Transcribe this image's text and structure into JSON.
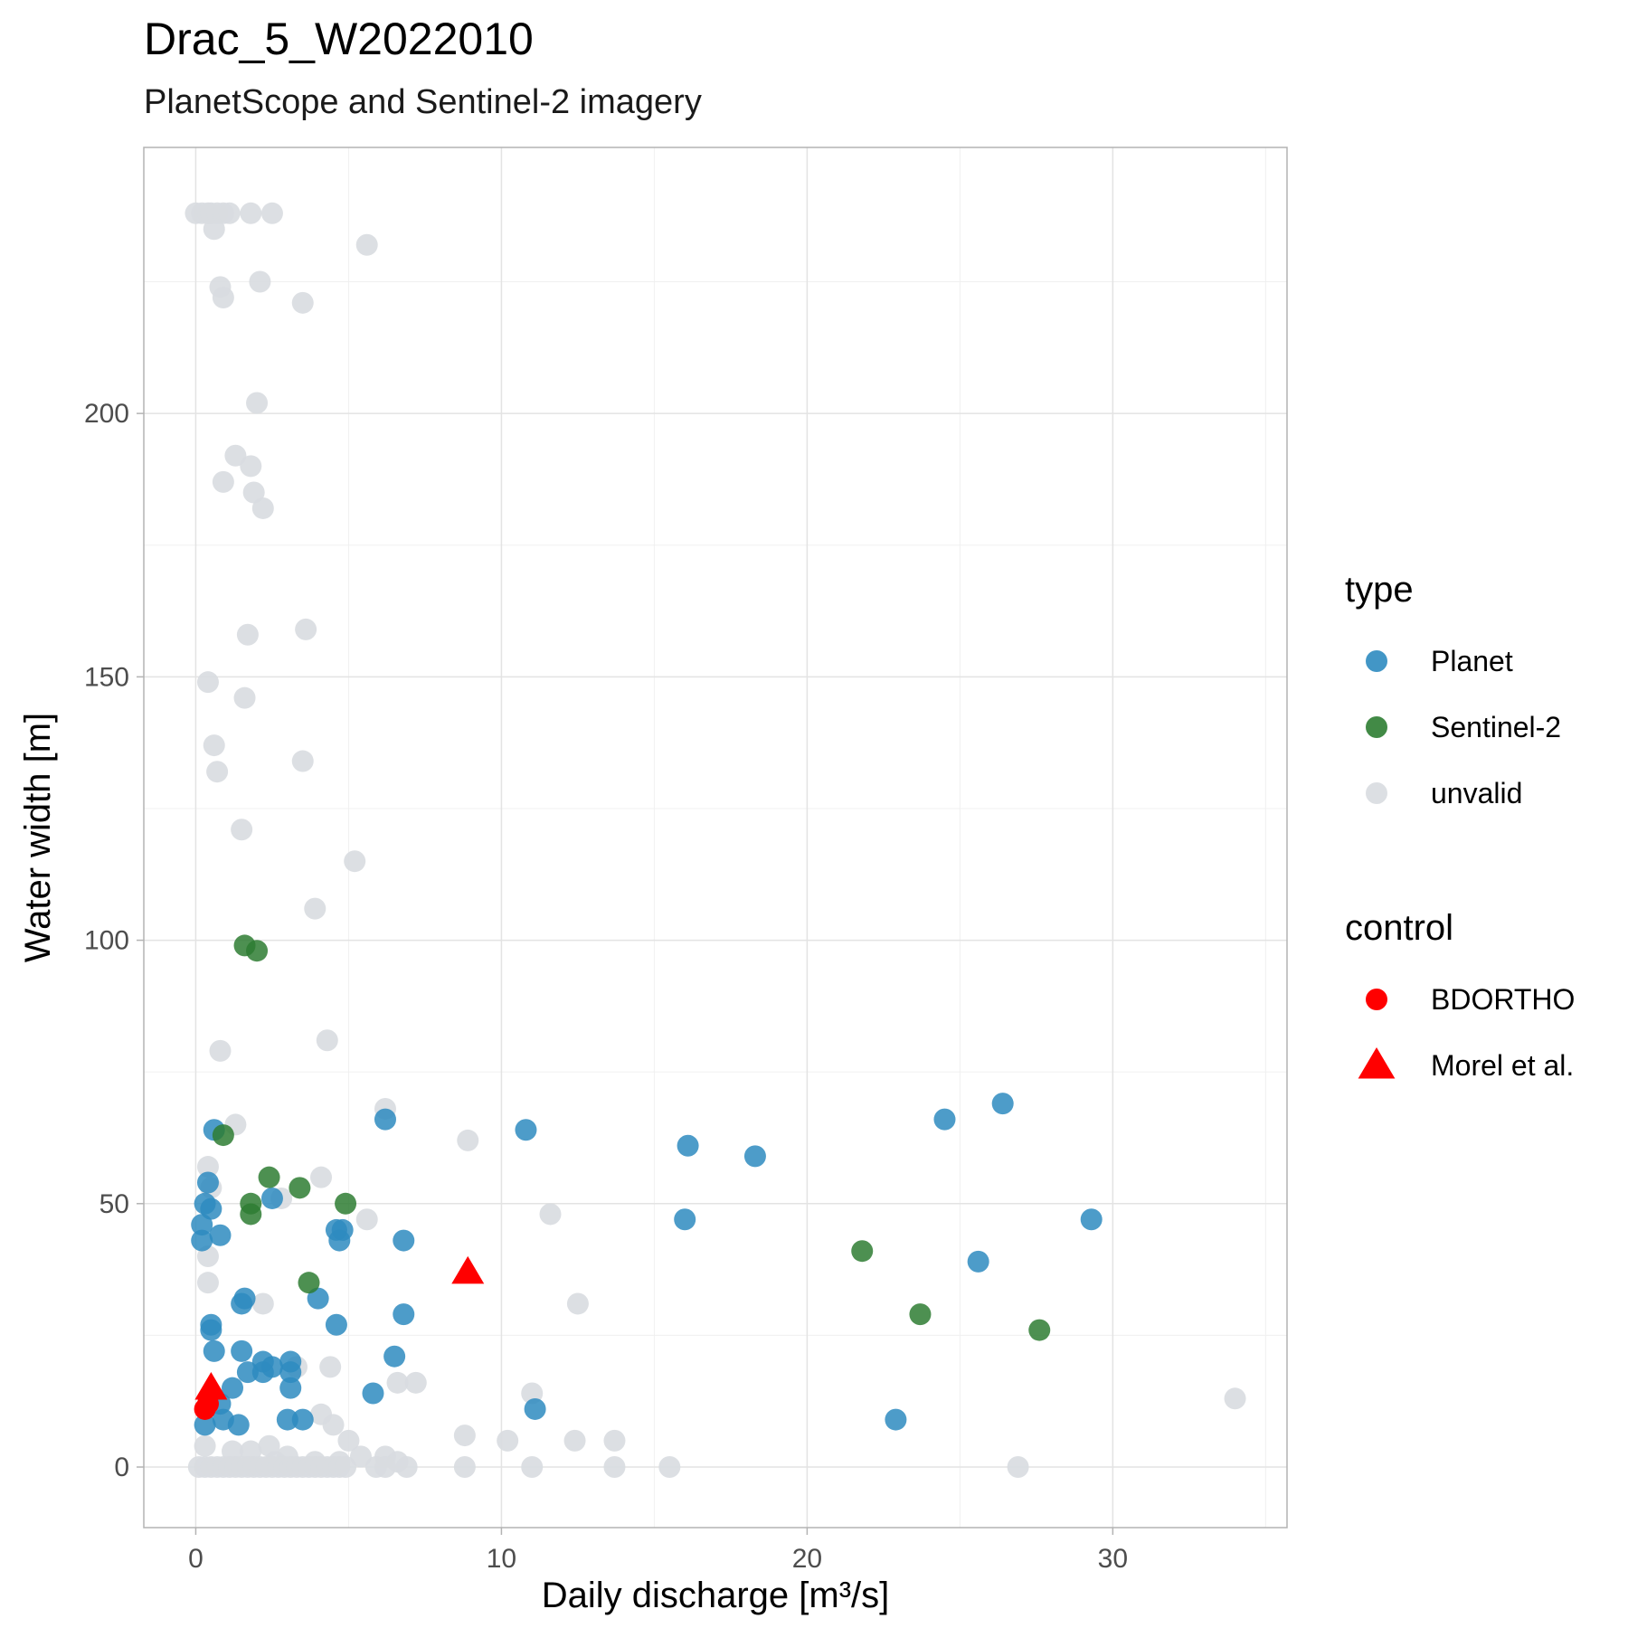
{
  "chart_data": {
    "type": "scatter",
    "title": "Drac_5_W2022010",
    "subtitle": "PlanetScope and Sentinel-2 imagery",
    "xlabel": "Daily discharge [m³/s]",
    "ylabel": "Water width [m]",
    "xlim": [
      -1.7,
      35.7
    ],
    "ylim": [
      -11.5,
      250.5
    ],
    "x_ticks": [
      0,
      10,
      20,
      30
    ],
    "y_ticks": [
      0,
      50,
      100,
      150,
      200
    ],
    "grid": true,
    "legend_position": "right",
    "legend": {
      "type_title": "type",
      "control_title": "control",
      "type_entries": [
        {
          "label": "Planet",
          "color": "#2E8BC0"
        },
        {
          "label": "Sentinel-2",
          "color": "#2E7D32"
        },
        {
          "label": "unvalid",
          "color": "#D8DCE0"
        }
      ],
      "control_entries": [
        {
          "label": "BDORTHO",
          "color": "#FF0000",
          "shape": "circle"
        },
        {
          "label": "Morel et al.",
          "color": "#FF0000",
          "shape": "triangle"
        }
      ]
    },
    "series": [
      {
        "name": "unvalid",
        "color": "#D8DCE0",
        "points": [
          [
            0.0,
            238
          ],
          [
            0.2,
            238
          ],
          [
            0.4,
            238
          ],
          [
            0.5,
            238
          ],
          [
            0.7,
            238
          ],
          [
            0.9,
            238
          ],
          [
            1.1,
            238
          ],
          [
            1.8,
            238
          ],
          [
            2.5,
            238
          ],
          [
            0.6,
            235
          ],
          [
            5.6,
            232
          ],
          [
            0.8,
            224
          ],
          [
            0.9,
            222
          ],
          [
            2.1,
            225
          ],
          [
            3.5,
            221
          ],
          [
            2.0,
            202
          ],
          [
            1.3,
            192
          ],
          [
            1.8,
            190
          ],
          [
            0.9,
            187
          ],
          [
            1.9,
            185
          ],
          [
            2.2,
            182
          ],
          [
            1.7,
            158
          ],
          [
            3.6,
            159
          ],
          [
            0.4,
            149
          ],
          [
            1.6,
            146
          ],
          [
            0.6,
            137
          ],
          [
            3.5,
            134
          ],
          [
            0.7,
            132
          ],
          [
            1.5,
            121
          ],
          [
            5.2,
            115
          ],
          [
            3.9,
            106
          ],
          [
            0.8,
            79
          ],
          [
            4.3,
            81
          ],
          [
            6.2,
            68
          ],
          [
            1.3,
            65
          ],
          [
            8.9,
            62
          ],
          [
            0.4,
            57
          ],
          [
            4.1,
            55
          ],
          [
            0.5,
            53
          ],
          [
            2.8,
            51
          ],
          [
            5.6,
            47
          ],
          [
            11.6,
            48
          ],
          [
            0.4,
            40
          ],
          [
            0.4,
            35
          ],
          [
            2.2,
            31
          ],
          [
            12.5,
            31
          ],
          [
            4.4,
            19
          ],
          [
            3.3,
            19
          ],
          [
            6.6,
            16
          ],
          [
            7.2,
            16
          ],
          [
            11.0,
            14
          ],
          [
            34.0,
            13
          ],
          [
            4.1,
            10
          ],
          [
            4.5,
            8
          ],
          [
            8.8,
            6
          ],
          [
            10.2,
            5
          ],
          [
            12.4,
            5
          ],
          [
            13.7,
            5
          ],
          [
            5.0,
            5
          ],
          [
            2.4,
            4
          ],
          [
            0.3,
            4
          ],
          [
            1.2,
            3
          ],
          [
            1.8,
            3
          ],
          [
            5.4,
            2
          ],
          [
            6.2,
            2
          ],
          [
            6.6,
            1
          ],
          [
            3.0,
            2
          ],
          [
            3.9,
            1
          ],
          [
            4.7,
            1
          ],
          [
            2.6,
            1
          ],
          [
            0.1,
            0
          ],
          [
            0.3,
            0
          ],
          [
            0.5,
            0
          ],
          [
            0.7,
            0
          ],
          [
            0.9,
            0
          ],
          [
            1.1,
            0
          ],
          [
            1.3,
            0
          ],
          [
            1.5,
            0
          ],
          [
            1.7,
            0
          ],
          [
            1.9,
            0
          ],
          [
            2.1,
            0
          ],
          [
            2.3,
            0
          ],
          [
            2.5,
            0
          ],
          [
            2.7,
            0
          ],
          [
            2.9,
            0
          ],
          [
            3.1,
            0
          ],
          [
            3.3,
            0
          ],
          [
            3.5,
            0
          ],
          [
            3.7,
            0
          ],
          [
            3.9,
            0
          ],
          [
            4.1,
            0
          ],
          [
            4.3,
            0
          ],
          [
            4.5,
            0
          ],
          [
            4.7,
            0
          ],
          [
            4.9,
            0
          ],
          [
            5.9,
            0
          ],
          [
            6.2,
            0
          ],
          [
            6.9,
            0
          ],
          [
            8.8,
            0
          ],
          [
            11.0,
            0
          ],
          [
            13.7,
            0
          ],
          [
            15.5,
            0
          ],
          [
            26.9,
            0
          ]
        ]
      },
      {
        "name": "Planet",
        "color": "#2E8BC0",
        "points": [
          [
            26.4,
            69
          ],
          [
            24.5,
            66
          ],
          [
            6.2,
            66
          ],
          [
            0.6,
            64
          ],
          [
            10.8,
            64
          ],
          [
            16.1,
            61
          ],
          [
            18.3,
            59
          ],
          [
            2.5,
            51
          ],
          [
            0.4,
            54
          ],
          [
            0.3,
            50
          ],
          [
            0.5,
            49
          ],
          [
            0.2,
            46
          ],
          [
            0.8,
            44
          ],
          [
            4.6,
            45
          ],
          [
            4.8,
            45
          ],
          [
            4.7,
            43
          ],
          [
            6.8,
            43
          ],
          [
            0.2,
            43
          ],
          [
            16.0,
            47
          ],
          [
            29.3,
            47
          ],
          [
            25.6,
            39
          ],
          [
            1.6,
            32
          ],
          [
            1.5,
            31
          ],
          [
            4.0,
            32
          ],
          [
            6.8,
            29
          ],
          [
            4.6,
            27
          ],
          [
            0.5,
            27
          ],
          [
            0.5,
            26
          ],
          [
            0.6,
            22
          ],
          [
            1.5,
            22
          ],
          [
            6.5,
            21
          ],
          [
            2.2,
            20
          ],
          [
            3.1,
            20
          ],
          [
            1.7,
            18
          ],
          [
            2.2,
            18
          ],
          [
            2.5,
            19
          ],
          [
            3.1,
            18
          ],
          [
            1.2,
            15
          ],
          [
            3.1,
            15
          ],
          [
            5.8,
            14
          ],
          [
            11.1,
            11
          ],
          [
            0.8,
            12
          ],
          [
            0.9,
            9
          ],
          [
            3.0,
            9
          ],
          [
            3.5,
            9
          ],
          [
            22.9,
            9
          ],
          [
            0.3,
            8
          ],
          [
            1.4,
            8
          ]
        ]
      },
      {
        "name": "Sentinel-2",
        "color": "#2E7D32",
        "points": [
          [
            1.6,
            99
          ],
          [
            2.0,
            98
          ],
          [
            0.9,
            63
          ],
          [
            2.4,
            55
          ],
          [
            3.4,
            53
          ],
          [
            1.8,
            50
          ],
          [
            4.9,
            50
          ],
          [
            1.8,
            48
          ],
          [
            21.8,
            41
          ],
          [
            3.7,
            35
          ],
          [
            23.7,
            29
          ],
          [
            27.6,
            26
          ]
        ]
      }
    ],
    "controls": [
      {
        "name": "BDORTHO",
        "color": "#FF0000",
        "shape": "circle",
        "points": [
          [
            0.3,
            11
          ],
          [
            0.4,
            12
          ]
        ]
      },
      {
        "name": "Morel et al.",
        "color": "#FF0000",
        "shape": "triangle",
        "points": [
          [
            8.9,
            37
          ],
          [
            0.5,
            15
          ]
        ]
      }
    ]
  }
}
